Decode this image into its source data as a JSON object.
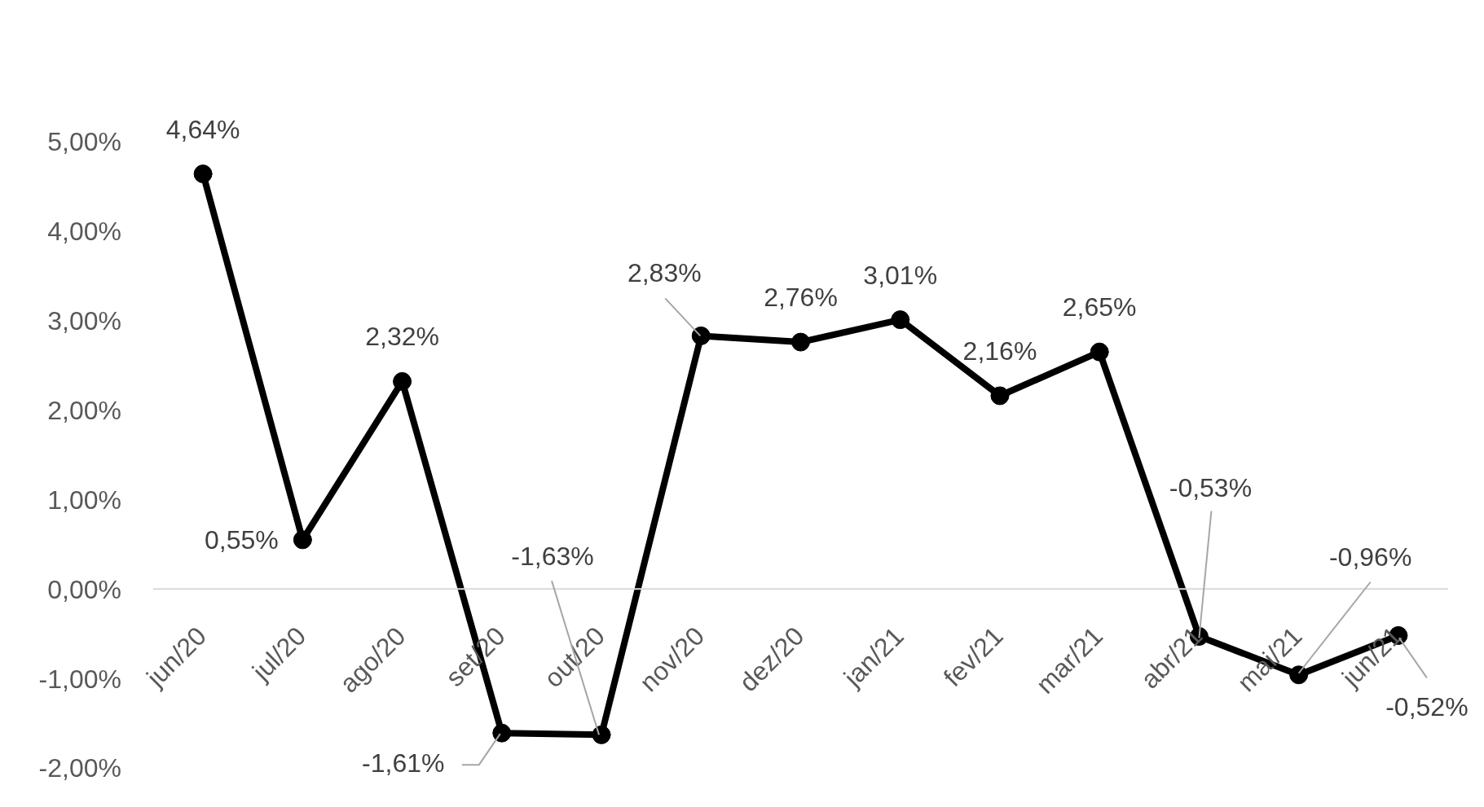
{
  "chart_data": {
    "type": "line",
    "categories": [
      "jun/20",
      "jul/20",
      "ago/20",
      "set/20",
      "out/20",
      "nov/20",
      "dez/20",
      "jan/21",
      "fev/21",
      "mar/21",
      "abr/21",
      "mai/21",
      "jun/21"
    ],
    "values": [
      4.64,
      0.55,
      2.32,
      -1.61,
      -1.63,
      2.83,
      2.76,
      3.01,
      2.16,
      2.65,
      -0.53,
      -0.96,
      -0.52
    ],
    "value_labels": [
      "4,64%",
      "0,55%",
      "2,32%",
      "-1,61%",
      "-1,63%",
      "2,83%",
      "2,76%",
      "3,01%",
      "2,16%",
      "2,65%",
      "-0,53%",
      "-0,96%",
      "-0,52%"
    ],
    "color": "#000000",
    "ylim": [
      -2,
      5
    ],
    "yticks": [
      {
        "value": -2,
        "label": "-2,00%"
      },
      {
        "value": -1,
        "label": "-1,00%"
      },
      {
        "value": 0,
        "label": "0,00%"
      },
      {
        "value": 1,
        "label": "1,00%"
      },
      {
        "value": 2,
        "label": "2,00%"
      },
      {
        "value": 3,
        "label": "3,00%"
      },
      {
        "value": 4,
        "label": "4,00%"
      },
      {
        "value": 5,
        "label": "5,00%"
      }
    ],
    "marker": "circle",
    "line_style": "solid"
  }
}
